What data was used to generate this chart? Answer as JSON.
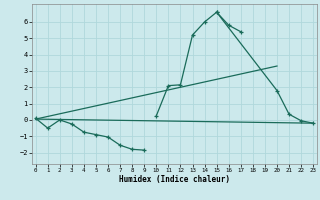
{
  "bg_color": "#cce9ec",
  "grid_color": "#b0d8dc",
  "line_color": "#1a6b5a",
  "xlabel": "Humidex (Indice chaleur)",
  "xlim": [
    -0.3,
    23.3
  ],
  "ylim": [
    -2.7,
    7.1
  ],
  "yticks": [
    -2,
    -1,
    0,
    1,
    2,
    3,
    4,
    5,
    6
  ],
  "xticks": [
    0,
    1,
    2,
    3,
    4,
    5,
    6,
    7,
    8,
    9,
    10,
    11,
    12,
    13,
    14,
    15,
    16,
    17,
    18,
    19,
    20,
    21,
    22,
    23
  ],
  "series_marked": [
    {
      "x": [
        0,
        1,
        2,
        3,
        4,
        5,
        6,
        7,
        8,
        9
      ],
      "y": [
        0.1,
        -0.5,
        0.0,
        -0.25,
        -0.75,
        -0.9,
        -1.05,
        -1.55,
        -1.8,
        -1.85
      ]
    },
    {
      "x": [
        10,
        11,
        12,
        13,
        14,
        15,
        16,
        17
      ],
      "y": [
        0.25,
        2.1,
        2.15,
        5.2,
        6.0,
        6.6,
        5.8,
        5.4
      ]
    },
    {
      "x": [
        15,
        20,
        21,
        22,
        23
      ],
      "y": [
        6.6,
        1.8,
        0.35,
        -0.05,
        -0.2
      ]
    }
  ],
  "series_plain": [
    {
      "x": [
        0,
        23
      ],
      "y": [
        0.05,
        -0.2
      ]
    },
    {
      "x": [
        0,
        20
      ],
      "y": [
        0.05,
        3.3
      ]
    }
  ]
}
